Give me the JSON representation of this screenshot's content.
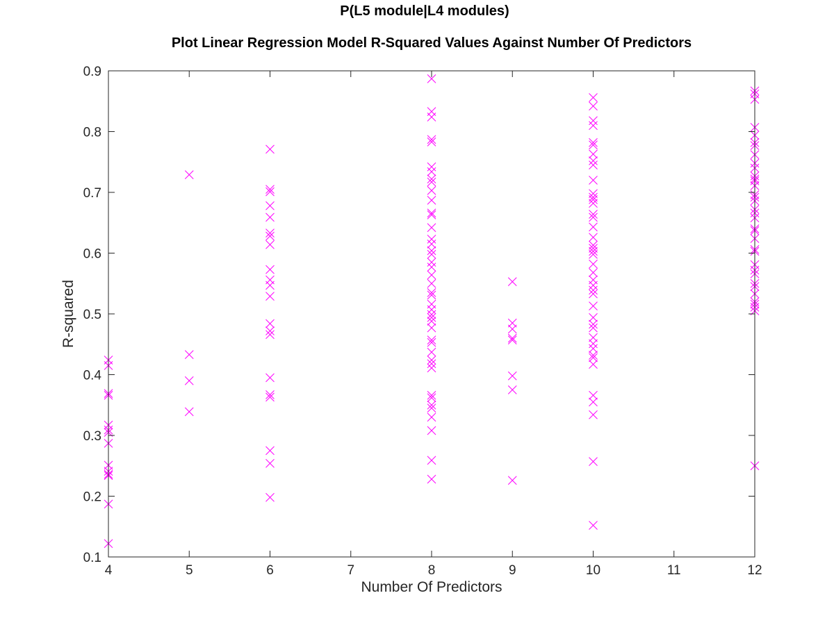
{
  "chart_data": {
    "type": "scatter",
    "title": "P(L5 module|L4 modules)",
    "subtitle": "Plot Linear Regression Model R-Squared Values Against Number Of Predictors",
    "xlabel": "Number Of Predictors",
    "ylabel": "R-squared",
    "xlim": [
      4,
      12
    ],
    "ylim": [
      0.1,
      0.9
    ],
    "xticks": [
      4,
      5,
      6,
      7,
      8,
      9,
      10,
      11,
      12
    ],
    "yticks": [
      "0.1",
      "0.2",
      "0.3",
      "0.4",
      "0.5",
      "0.6",
      "0.7",
      "0.8",
      "0.9"
    ],
    "grid": false,
    "marker": "x",
    "marker_color": "#ff00ff",
    "axis_color": "#262626",
    "series": [
      {
        "points": [
          [
            4,
            0.424
          ],
          [
            4,
            0.415
          ],
          [
            4,
            0.369
          ],
          [
            4,
            0.366
          ],
          [
            4,
            0.317
          ],
          [
            4,
            0.309
          ],
          [
            4,
            0.305
          ],
          [
            4,
            0.287
          ],
          [
            4,
            0.251
          ],
          [
            4,
            0.241
          ],
          [
            4,
            0.236
          ],
          [
            4,
            0.234
          ],
          [
            4,
            0.187
          ],
          [
            4,
            0.122
          ],
          [
            5,
            0.729
          ],
          [
            5,
            0.433
          ],
          [
            5,
            0.39
          ],
          [
            5,
            0.339
          ],
          [
            6,
            0.771
          ],
          [
            6,
            0.705
          ],
          [
            6,
            0.701
          ],
          [
            6,
            0.678
          ],
          [
            6,
            0.659
          ],
          [
            6,
            0.633
          ],
          [
            6,
            0.628
          ],
          [
            6,
            0.614
          ],
          [
            6,
            0.573
          ],
          [
            6,
            0.556
          ],
          [
            6,
            0.547
          ],
          [
            6,
            0.529
          ],
          [
            6,
            0.484
          ],
          [
            6,
            0.472
          ],
          [
            6,
            0.466
          ],
          [
            6,
            0.395
          ],
          [
            6,
            0.367
          ],
          [
            6,
            0.363
          ],
          [
            6,
            0.275
          ],
          [
            6,
            0.254
          ],
          [
            6,
            0.198
          ],
          [
            8,
            0.887
          ],
          [
            8,
            0.833
          ],
          [
            8,
            0.824
          ],
          [
            8,
            0.787
          ],
          [
            8,
            0.783
          ],
          [
            8,
            0.742
          ],
          [
            8,
            0.734
          ],
          [
            8,
            0.722
          ],
          [
            8,
            0.717
          ],
          [
            8,
            0.703
          ],
          [
            8,
            0.687
          ],
          [
            8,
            0.666
          ],
          [
            8,
            0.663
          ],
          [
            8,
            0.642
          ],
          [
            8,
            0.623
          ],
          [
            8,
            0.615
          ],
          [
            8,
            0.604
          ],
          [
            8,
            0.598
          ],
          [
            8,
            0.585
          ],
          [
            8,
            0.577
          ],
          [
            8,
            0.564
          ],
          [
            8,
            0.55
          ],
          [
            8,
            0.535
          ],
          [
            8,
            0.531
          ],
          [
            8,
            0.516
          ],
          [
            8,
            0.507
          ],
          [
            8,
            0.499
          ],
          [
            8,
            0.494
          ],
          [
            8,
            0.488
          ],
          [
            8,
            0.477
          ],
          [
            8,
            0.457
          ],
          [
            8,
            0.453
          ],
          [
            8,
            0.437
          ],
          [
            8,
            0.424
          ],
          [
            8,
            0.418
          ],
          [
            8,
            0.411
          ],
          [
            8,
            0.366
          ],
          [
            8,
            0.362
          ],
          [
            8,
            0.35
          ],
          [
            8,
            0.345
          ],
          [
            8,
            0.33
          ],
          [
            8,
            0.308
          ],
          [
            8,
            0.259
          ],
          [
            8,
            0.228
          ],
          [
            9,
            0.553
          ],
          [
            9,
            0.485
          ],
          [
            9,
            0.475
          ],
          [
            9,
            0.46
          ],
          [
            9,
            0.457
          ],
          [
            9,
            0.398
          ],
          [
            9,
            0.375
          ],
          [
            9,
            0.226
          ],
          [
            10,
            0.856
          ],
          [
            10,
            0.842
          ],
          [
            10,
            0.818
          ],
          [
            10,
            0.81
          ],
          [
            10,
            0.782
          ],
          [
            10,
            0.778
          ],
          [
            10,
            0.763
          ],
          [
            10,
            0.752
          ],
          [
            10,
            0.745
          ],
          [
            10,
            0.72
          ],
          [
            10,
            0.698
          ],
          [
            10,
            0.692
          ],
          [
            10,
            0.688
          ],
          [
            10,
            0.682
          ],
          [
            10,
            0.664
          ],
          [
            10,
            0.659
          ],
          [
            10,
            0.643
          ],
          [
            10,
            0.626
          ],
          [
            10,
            0.613
          ],
          [
            10,
            0.608
          ],
          [
            10,
            0.603
          ],
          [
            10,
            0.598
          ],
          [
            10,
            0.582
          ],
          [
            10,
            0.568
          ],
          [
            10,
            0.556
          ],
          [
            10,
            0.547
          ],
          [
            10,
            0.539
          ],
          [
            10,
            0.533
          ],
          [
            10,
            0.513
          ],
          [
            10,
            0.494
          ],
          [
            10,
            0.483
          ],
          [
            10,
            0.477
          ],
          [
            10,
            0.461
          ],
          [
            10,
            0.451
          ],
          [
            10,
            0.443
          ],
          [
            10,
            0.432
          ],
          [
            10,
            0.428
          ],
          [
            10,
            0.417
          ],
          [
            10,
            0.366
          ],
          [
            10,
            0.355
          ],
          [
            10,
            0.334
          ],
          [
            10,
            0.257
          ],
          [
            10,
            0.152
          ],
          [
            12,
            0.867
          ],
          [
            12,
            0.862
          ],
          [
            12,
            0.853
          ],
          [
            12,
            0.807
          ],
          [
            12,
            0.794
          ],
          [
            12,
            0.782
          ],
          [
            12,
            0.777
          ],
          [
            12,
            0.762
          ],
          [
            12,
            0.748
          ],
          [
            12,
            0.74
          ],
          [
            12,
            0.727
          ],
          [
            12,
            0.722
          ],
          [
            12,
            0.719
          ],
          [
            12,
            0.711
          ],
          [
            12,
            0.696
          ],
          [
            12,
            0.692
          ],
          [
            12,
            0.686
          ],
          [
            12,
            0.672
          ],
          [
            12,
            0.666
          ],
          [
            12,
            0.658
          ],
          [
            12,
            0.64
          ],
          [
            12,
            0.637
          ],
          [
            12,
            0.624
          ],
          [
            12,
            0.606
          ],
          [
            12,
            0.603
          ],
          [
            12,
            0.581
          ],
          [
            12,
            0.572
          ],
          [
            12,
            0.566
          ],
          [
            12,
            0.55
          ],
          [
            12,
            0.545
          ],
          [
            12,
            0.533
          ],
          [
            12,
            0.52
          ],
          [
            12,
            0.516
          ],
          [
            12,
            0.511
          ],
          [
            12,
            0.505
          ],
          [
            12,
            0.25
          ]
        ]
      }
    ]
  }
}
